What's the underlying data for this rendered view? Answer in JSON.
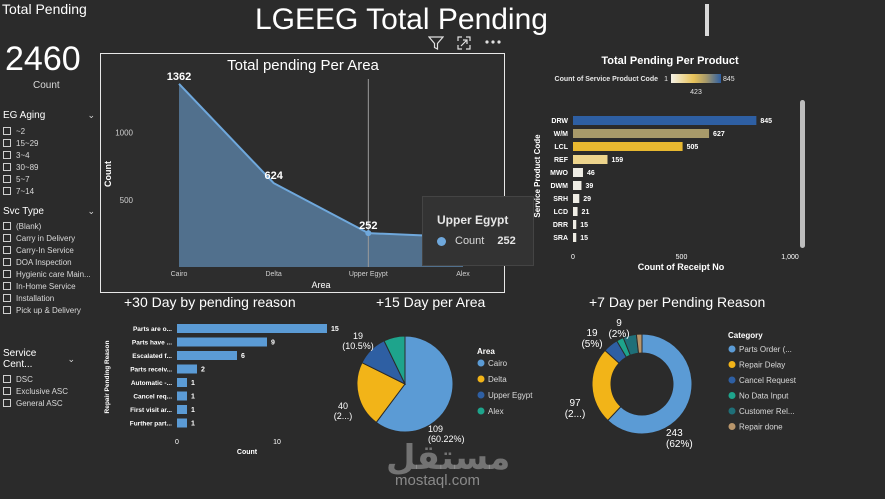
{
  "header": {
    "title": "LGEEG Total Pending",
    "visual_icons": [
      "filter-icon",
      "focus-mode-icon",
      "more-options-icon"
    ]
  },
  "kpi": {
    "title": "Total Pending",
    "value": "2460",
    "label": "Count"
  },
  "slicers": {
    "aging": {
      "title": "EG Aging",
      "items": [
        "~2",
        "15~29",
        "3~4",
        "30~89",
        "5~7",
        "7~14"
      ]
    },
    "svc_type": {
      "title": "Svc Type",
      "items": [
        "(Blank)",
        "Carry in Delivery",
        "Carry-In Service",
        "DOA Inspection",
        "Hygienic care Main...",
        "In-Home Service",
        "Installation",
        "Pick up & Delivery"
      ]
    },
    "service_center": {
      "title": "Service Cent...",
      "items": [
        "DSC",
        "Exclusive ASC",
        "General ASC"
      ]
    }
  },
  "tooltip": {
    "title": "Upper Egypt",
    "series": "Count",
    "value": "252"
  },
  "colors": {
    "area": "#6fa8dc",
    "blue": "#5b9bd5",
    "gold": "#f2b418",
    "navy": "#2e5fa3",
    "teal": "#1ea48c",
    "tan": "#b8956a",
    "bg": "#2b2b2b"
  },
  "chart_data": [
    {
      "type": "area",
      "title": "Total pending Per Area",
      "xlabel": "Area",
      "ylabel": "Count",
      "categories": [
        "Cairo",
        "Delta",
        "Upper Egypt",
        "Alex"
      ],
      "values": [
        1362,
        624,
        252,
        222
      ],
      "data_labels": [
        "1362",
        "624",
        "252",
        "222"
      ],
      "yticks": [
        "500",
        "1000"
      ],
      "ylim": [
        0,
        1450
      ]
    },
    {
      "type": "bar",
      "title": "Total Pending Per Product",
      "ylabel": "Service Product Code",
      "xlabel": "Count of Receipt No",
      "categories": [
        "DRW",
        "W/M",
        "LCL",
        "REF",
        "MWO",
        "DWM",
        "SRH",
        "LCD",
        "DRR",
        "SRA"
      ],
      "values": [
        845,
        627,
        505,
        159,
        46,
        39,
        29,
        21,
        15,
        15
      ],
      "xticks": [
        "0",
        "500",
        "1,000"
      ],
      "xlim": [
        0,
        1000
      ],
      "color_scale": {
        "label": "Count of Service Product Code",
        "min": "1",
        "mid": "423",
        "max": "845"
      }
    },
    {
      "type": "bar",
      "title": "+30 Day by pending reason",
      "ylabel": "Repair Pending Reason",
      "xlabel": "Count",
      "categories": [
        "Parts are o...",
        "Parts have ...",
        "Escalated f...",
        "Parts receiv...",
        "Automatic -...",
        "Cancel req...",
        "First visit ar...",
        "Further part..."
      ],
      "values": [
        15,
        9,
        6,
        2,
        1,
        1,
        1,
        1
      ],
      "xticks": [
        "0",
        "10"
      ],
      "xlim": [
        0,
        16
      ]
    },
    {
      "type": "pie",
      "title": "+15 Day per Area",
      "legend_title": "Area",
      "categories": [
        "Cairo",
        "Delta",
        "Upper Egypt",
        "Alex"
      ],
      "values": [
        109,
        40,
        19,
        13
      ],
      "labels": [
        {
          "value": "109",
          "pct": "(60.22%)"
        },
        {
          "value": "40",
          "pct": "(2...)"
        },
        {
          "value": "19",
          "pct": "(10.5%)"
        }
      ]
    },
    {
      "type": "pie",
      "title": "+7 Day per Pending Reason",
      "legend_title": "Category",
      "categories": [
        "Parts Order (...",
        "Repair Delay",
        "Cancel Request",
        "No Data Input",
        "Customer Rel...",
        "Repair done"
      ],
      "values": [
        243,
        97,
        19,
        9,
        17,
        7
      ],
      "labels": [
        {
          "value": "243",
          "pct": "(62%)"
        },
        {
          "value": "97",
          "pct": "(2...)"
        },
        {
          "value": "19",
          "pct": "(5%)"
        },
        {
          "value": "9",
          "pct": "(2%)"
        }
      ]
    }
  ],
  "watermark": {
    "arabic": "مستقل",
    "domain": "mostaql.com"
  }
}
